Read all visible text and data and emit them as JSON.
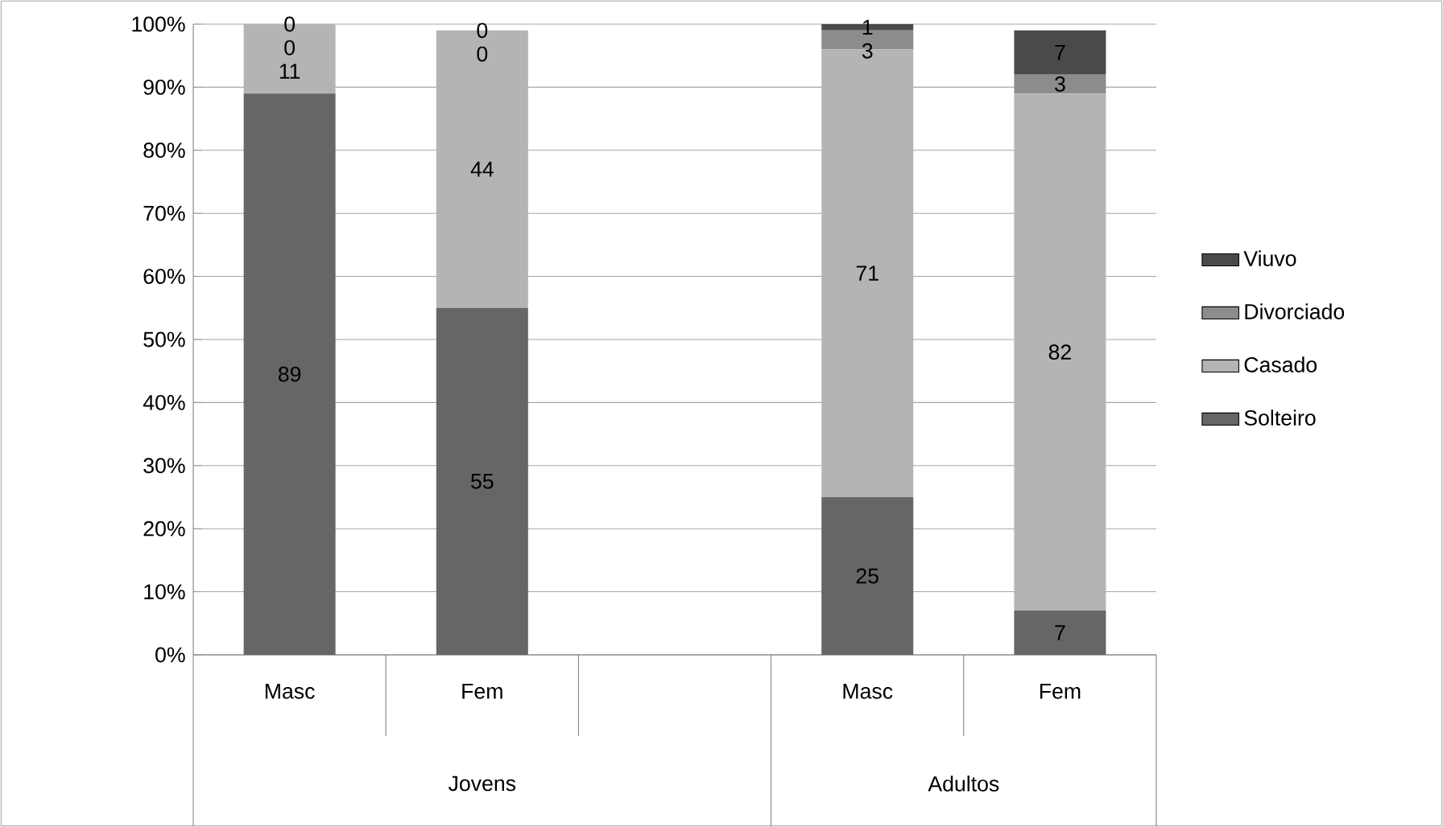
{
  "chart_data": {
    "type": "bar",
    "stacked": true,
    "categories": [
      "Masc",
      "Fem",
      null,
      "Masc",
      "Fem"
    ],
    "series": [
      {
        "name": "Solteiro",
        "color": "#666666",
        "values": [
          89,
          55,
          null,
          25,
          7
        ]
      },
      {
        "name": "Casado",
        "color": "#b4b4b4",
        "values": [
          11,
          44,
          null,
          71,
          82
        ]
      },
      {
        "name": "Divorciado",
        "color": "#8c8c8c",
        "values": [
          0,
          0,
          null,
          3,
          3
        ]
      },
      {
        "name": "Viuvo",
        "color": "#4a4a4a",
        "values": [
          0,
          0,
          null,
          1,
          7
        ]
      }
    ],
    "ylim": [
      0,
      100
    ],
    "yticks": [
      {
        "value": 0,
        "label": "0%"
      },
      {
        "value": 10,
        "label": "10%"
      },
      {
        "value": 20,
        "label": "20%"
      },
      {
        "value": 30,
        "label": "30%"
      },
      {
        "value": 40,
        "label": "40%"
      },
      {
        "value": 50,
        "label": "50%"
      },
      {
        "value": 60,
        "label": "60%"
      },
      {
        "value": 70,
        "label": "70%"
      },
      {
        "value": 80,
        "label": "80%"
      },
      {
        "value": 90,
        "label": "90%"
      },
      {
        "value": 100,
        "label": "100%"
      }
    ],
    "grid": "y",
    "legend": "right",
    "data_labels": true,
    "annotations": [
      "Jovens",
      "Adultos"
    ]
  }
}
